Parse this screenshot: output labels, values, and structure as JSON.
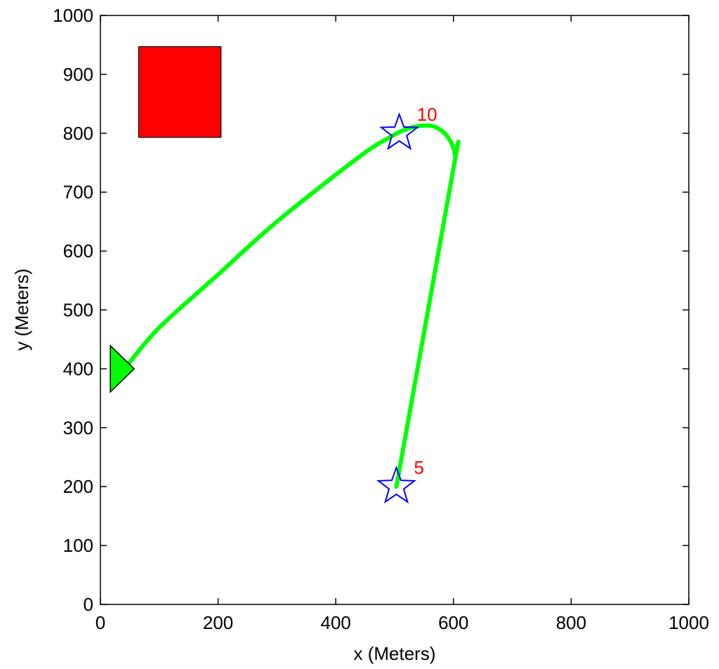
{
  "chart_data": {
    "type": "line",
    "xlabel": "x (Meters)",
    "ylabel": "y (Meters)",
    "xlim": [
      0,
      1000
    ],
    "ylim": [
      0,
      1000
    ],
    "xticks": [
      0,
      200,
      400,
      600,
      800,
      1000
    ],
    "yticks": [
      0,
      100,
      200,
      300,
      400,
      500,
      600,
      700,
      800,
      900,
      1000
    ],
    "grid": false,
    "path_color": "#00ff00",
    "path": {
      "x": [
        503,
        600,
        603,
        598,
        585,
        565,
        540,
        515,
        490,
        440,
        300,
        200,
        100,
        45
      ],
      "y": [
        200,
        740,
        760,
        780,
        800,
        812,
        812,
        805,
        792,
        760,
        650,
        560,
        470,
        405
      ]
    },
    "waypoints": [
      {
        "label": "5",
        "x": 503,
        "y": 200,
        "color": "#0000ff"
      },
      {
        "label": "10",
        "x": 508,
        "y": 800,
        "color": "#0000ff"
      }
    ],
    "waypoint_label_color": "#ff0000",
    "vehicle": {
      "x": 30,
      "y": 400,
      "heading": "right",
      "color": "#00ff00"
    },
    "obstacle": {
      "x0": 65,
      "x1": 205,
      "y0": 793,
      "y1": 947,
      "color": "#ff0000"
    }
  }
}
